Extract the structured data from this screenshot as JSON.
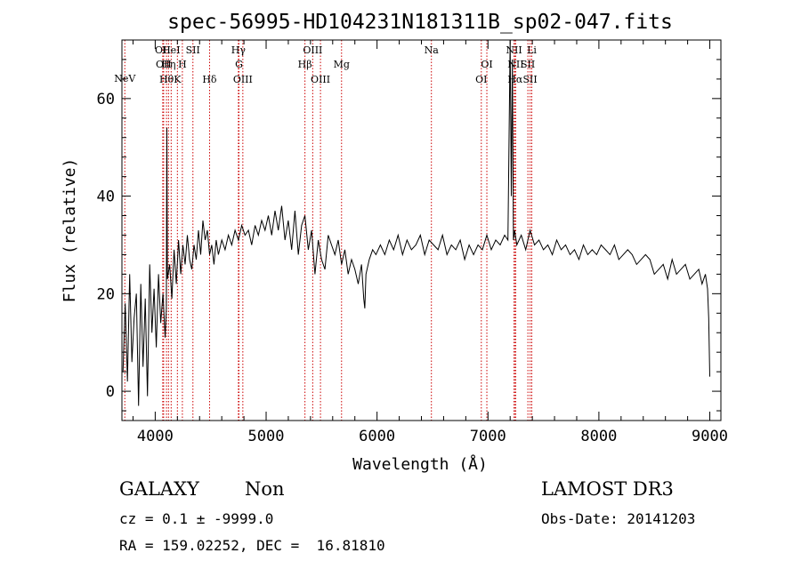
{
  "chart_data": {
    "type": "line",
    "title": "spec-56995-HD104231N181311B_sp02-047.fits",
    "xlabel": "Wavelength (Å)",
    "ylabel": "Flux (relative)",
    "xlim": [
      3700,
      9100
    ],
    "ylim": [
      -6,
      72
    ],
    "xticks": [
      4000,
      5000,
      6000,
      7000,
      8000,
      9000
    ],
    "yticks": [
      0,
      20,
      40,
      60
    ],
    "grid": false,
    "line_color": "#000000",
    "marker_color": "#cc0000",
    "series": [
      {
        "x": [
          3710,
          3730,
          3750,
          3770,
          3790,
          3810,
          3830,
          3850,
          3870,
          3890,
          3910,
          3930,
          3950,
          3970,
          3990,
          4010,
          4030,
          4050,
          4070,
          4090,
          4100,
          4105,
          4110,
          4130,
          4150,
          4170,
          4190,
          4210,
          4230,
          4250,
          4270,
          4290,
          4310,
          4330,
          4350,
          4370,
          4390,
          4410,
          4430,
          4450,
          4470,
          4490,
          4510,
          4530,
          4550,
          4570,
          4600,
          4630,
          4660,
          4690,
          4720,
          4750,
          4780,
          4810,
          4840,
          4870,
          4900,
          4930,
          4960,
          4990,
          5020,
          5050,
          5080,
          5110,
          5140,
          5170,
          5200,
          5230,
          5260,
          5290,
          5320,
          5350,
          5380,
          5410,
          5440,
          5470,
          5500,
          5530,
          5560,
          5590,
          5620,
          5650,
          5680,
          5710,
          5740,
          5770,
          5800,
          5830,
          5860,
          5880,
          5890,
          5900,
          5930,
          5960,
          5990,
          6030,
          6070,
          6110,
          6150,
          6190,
          6230,
          6270,
          6310,
          6350,
          6390,
          6430,
          6470,
          6510,
          6550,
          6590,
          6630,
          6670,
          6710,
          6750,
          6790,
          6830,
          6870,
          6910,
          6950,
          6990,
          7030,
          7070,
          7110,
          7150,
          7180,
          7200,
          7210,
          7220,
          7230,
          7240,
          7260,
          7300,
          7340,
          7380,
          7420,
          7460,
          7500,
          7540,
          7580,
          7620,
          7660,
          7700,
          7740,
          7780,
          7820,
          7860,
          7900,
          7940,
          7980,
          8020,
          8060,
          8100,
          8140,
          8180,
          8220,
          8260,
          8300,
          8340,
          8380,
          8420,
          8460,
          8500,
          8540,
          8580,
          8620,
          8660,
          8700,
          8740,
          8780,
          8820,
          8860,
          8900,
          8930,
          8960,
          8980,
          8990,
          9000
        ],
        "y": [
          4,
          18,
          2,
          24,
          6,
          15,
          20,
          -3,
          22,
          5,
          19,
          -1,
          26,
          12,
          21,
          9,
          24,
          14,
          20,
          11,
          17,
          54,
          23,
          26,
          19,
          29,
          22,
          31,
          24,
          30,
          26,
          32,
          27,
          25,
          30,
          27,
          33,
          28,
          35,
          31,
          33,
          28,
          30,
          26,
          31,
          28,
          31,
          29,
          32,
          30,
          33,
          31,
          34,
          32,
          33,
          30,
          34,
          32,
          35,
          33,
          36,
          32,
          37,
          33,
          38,
          31,
          35,
          29,
          37,
          28,
          34,
          36,
          29,
          33,
          24,
          31,
          27,
          25,
          32,
          30,
          28,
          31,
          26,
          29,
          24,
          27,
          25,
          22,
          26,
          19,
          17,
          24,
          27,
          29,
          28,
          30,
          28,
          31,
          29,
          32,
          28,
          31,
          29,
          30,
          32,
          28,
          31,
          30,
          29,
          32,
          28,
          30,
          29,
          31,
          27,
          30,
          28,
          30,
          29,
          32,
          29,
          31,
          30,
          32,
          31,
          72,
          40,
          68,
          31,
          33,
          30,
          32,
          29,
          33,
          30,
          31,
          29,
          30,
          28,
          31,
          29,
          30,
          28,
          29,
          27,
          30,
          28,
          29,
          28,
          30,
          29,
          28,
          30,
          27,
          28,
          29,
          28,
          26,
          27,
          28,
          27,
          24,
          25,
          26,
          23,
          27,
          24,
          25,
          26,
          23,
          24,
          25,
          22,
          24,
          21,
          15,
          3
        ]
      }
    ],
    "lines": [
      {
        "name": "NeV",
        "x": 3726,
        "row": 0
      },
      {
        "name": "OII",
        "x": 4068,
        "row": 2
      },
      {
        "name": "OII",
        "x": 4076,
        "row": 3
      },
      {
        "name": "Hθ",
        "x": 4102,
        "row": 4
      },
      {
        "name": "Hη",
        "x": 4120,
        "row": 3
      },
      {
        "name": "HeI",
        "x": 4144,
        "row": 2
      },
      {
        "name": "K",
        "x": 4200,
        "row": 4
      },
      {
        "name": "H",
        "x": 4245,
        "row": 3
      },
      {
        "name": "SII",
        "x": 4340,
        "row": 2
      },
      {
        "name": "Hδ",
        "x": 4490,
        "row": 4
      },
      {
        "name": "Hγ",
        "x": 4750,
        "row": 2
      },
      {
        "name": "G",
        "x": 4755,
        "row": 3
      },
      {
        "name": "OIII",
        "x": 4790,
        "row": 4
      },
      {
        "name": "OIII",
        "x": 5420,
        "row": 2
      },
      {
        "name": "Hβ",
        "x": 5350,
        "row": 3
      },
      {
        "name": "OIII",
        "x": 5490,
        "row": 4
      },
      {
        "name": "Mg",
        "x": 5680,
        "row": 3
      },
      {
        "name": "Na",
        "x": 6490,
        "row": 2
      },
      {
        "name": "OI",
        "x": 6990,
        "row": 3
      },
      {
        "name": "OI",
        "x": 6940,
        "row": 4
      },
      {
        "name": "NII",
        "x": 7235,
        "row": 2
      },
      {
        "name": "NII",
        "x": 7250,
        "row": 3
      },
      {
        "name": "Hα",
        "x": 7245,
        "row": 4
      },
      {
        "name": "Li",
        "x": 7395,
        "row": 2
      },
      {
        "name": "SII",
        "x": 7360,
        "row": 3
      },
      {
        "name": "SII",
        "x": 7380,
        "row": 4
      }
    ]
  },
  "footer": {
    "object_class": "GALAXY",
    "subclass": "Non",
    "cz_line": "cz = 0.1 ± -9999.0",
    "coords_line": "RA = 159.02252, DEC =  16.81810",
    "survey": "LAMOST DR3",
    "obs_date": "Obs-Date: 20141203"
  }
}
